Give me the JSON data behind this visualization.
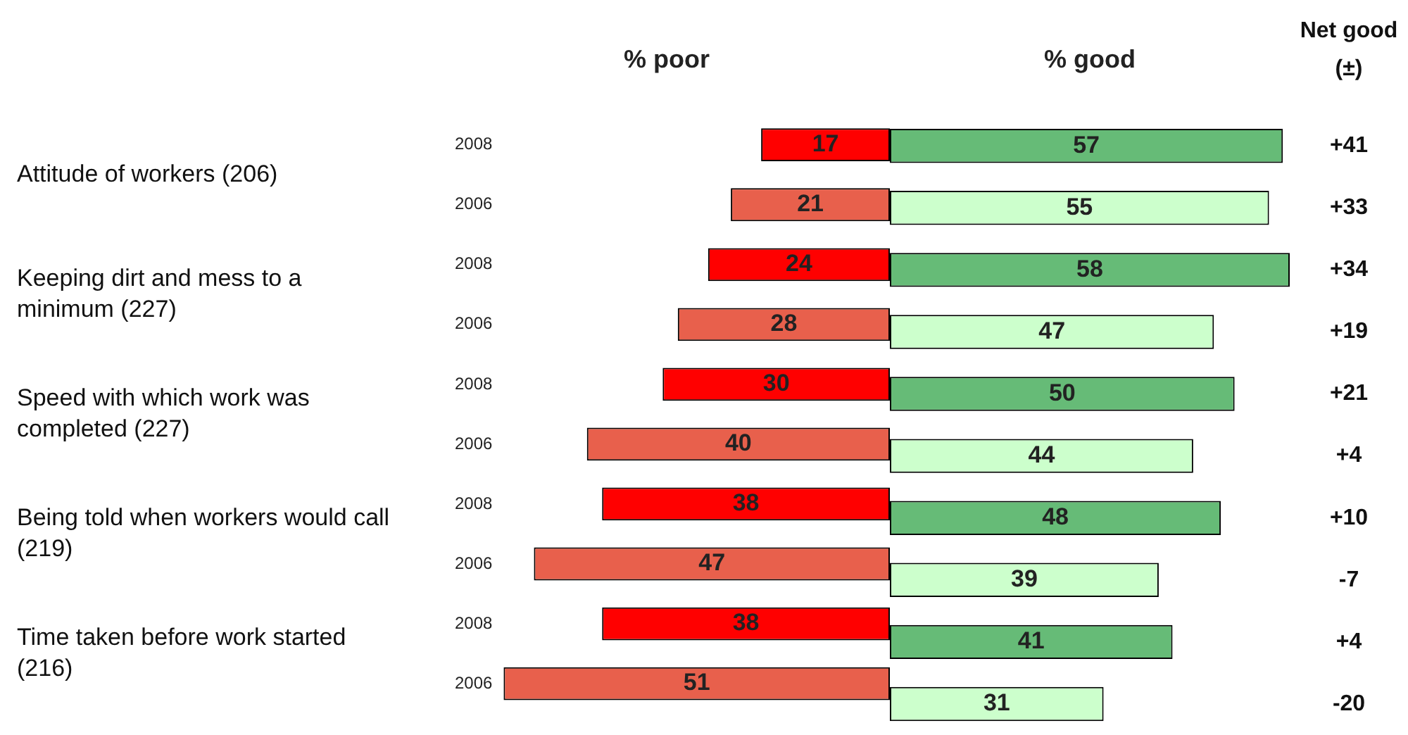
{
  "chart_data": [
    {
      "type": "bar",
      "orientation": "horizontal",
      "title": "% poor",
      "categories": [
        "2008",
        "2006",
        "2008",
        "2006",
        "2008",
        "2006",
        "2008",
        "2006",
        "2008",
        "2006"
      ],
      "values": [
        17,
        21,
        24,
        28,
        30,
        40,
        38,
        47,
        38,
        51
      ],
      "colors": [
        "#ff0000",
        "#e8604c",
        "#ff0000",
        "#e8604c",
        "#ff0000",
        "#e8604c",
        "#ff0000",
        "#e8604c",
        "#ff0000",
        "#e8604c"
      ],
      "xlim": [
        51,
        0
      ],
      "tick_labels": "y",
      "grid": false,
      "legend": false,
      "data_labels": true,
      "annotations": [
        "Attitude of workers (206)",
        "Keeping dirt and mess to a minimum (227)",
        "Speed with which work was completed (227)",
        "Being told when workers would call (219)",
        "Time taken before work started (216)"
      ]
    },
    {
      "type": "bar",
      "orientation": "horizontal",
      "title": "% good",
      "categories": [
        "2008",
        "2006",
        "2008",
        "2006",
        "2008",
        "2006",
        "2008",
        "2006",
        "2008",
        "2006"
      ],
      "values": [
        57,
        55,
        58,
        47,
        50,
        44,
        48,
        39,
        41,
        31
      ],
      "colors": [
        "#66bb77",
        "#ccffcc",
        "#66bb77",
        "#ccffcc",
        "#66bb77",
        "#ccffcc",
        "#66bb77",
        "#ccffcc",
        "#66bb77",
        "#ccffcc"
      ],
      "xlim": [
        0,
        58
      ],
      "tick_labels": false,
      "grid": false,
      "legend": false,
      "data_labels": true,
      "annotations": [
        "Net good (±)",
        "+41",
        "+33",
        "+34",
        "+19",
        "+21",
        "+4",
        "+10",
        "-7",
        "+4",
        "-20"
      ]
    }
  ]
}
